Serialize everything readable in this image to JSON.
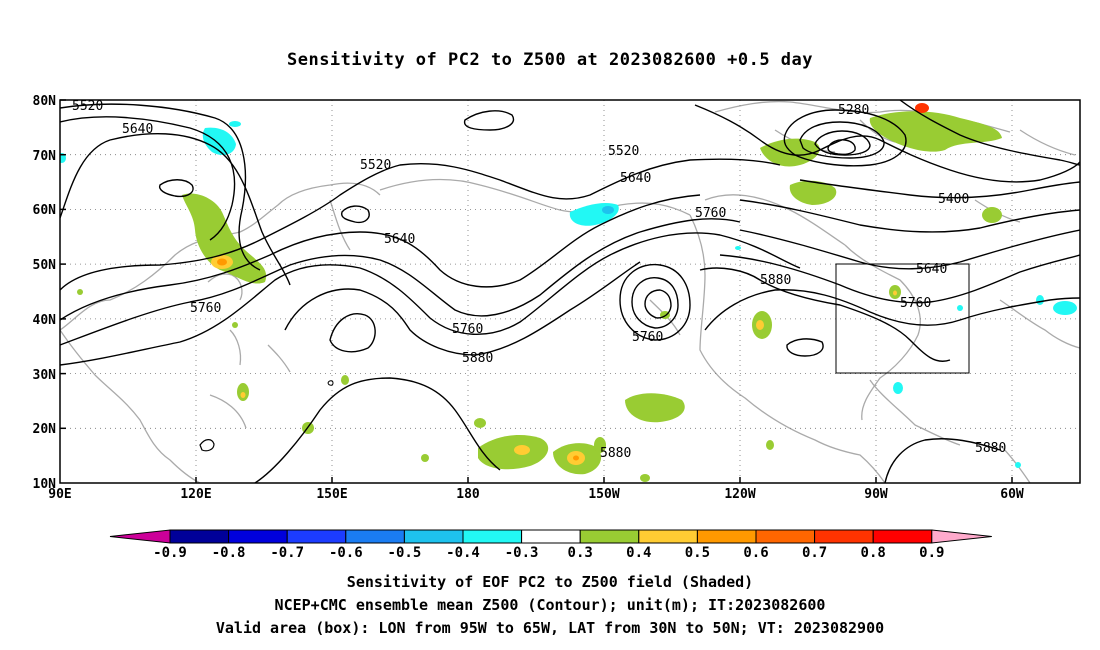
{
  "title": "Sensitivity of PC2 to Z500 at 2023082600 +0.5 day",
  "map": {
    "lat_labels": [
      "80N",
      "70N",
      "60N",
      "50N",
      "40N",
      "30N",
      "20N",
      "10N"
    ],
    "lon_labels": [
      "90E",
      "120E",
      "150E",
      "180",
      "150W",
      "120W",
      "90W",
      "60W"
    ],
    "contour_labels": [
      "5520",
      "5640",
      "5520",
      "5640",
      "5760",
      "5520",
      "5640",
      "5760",
      "5760",
      "5880",
      "5760",
      "5880",
      "5280",
      "5400",
      "5640",
      "5760",
      "5880",
      "5880"
    ],
    "valid_box": {
      "lon_from": "95W",
      "lon_to": "65W",
      "lat_from": "30N",
      "lat_to": "50N"
    }
  },
  "colorbar": {
    "labels": [
      "-0.9",
      "-0.8",
      "-0.7",
      "-0.6",
      "-0.5",
      "-0.4",
      "-0.3",
      "0.3",
      "0.4",
      "0.5",
      "0.6",
      "0.7",
      "0.8",
      "0.9"
    ],
    "colors": [
      "#000099",
      "#0000dd",
      "#1c3cff",
      "#1a7cf2",
      "#1ec2ee",
      "#22f8f4",
      "#ffffff",
      "#99cc33",
      "#ffcc33",
      "#ff9900",
      "#ff6600",
      "#ff3300",
      "#ff0000"
    ],
    "low_tip_color": "#cc0099",
    "high_tip_color": "#ffaacc"
  },
  "footer": {
    "line1": "Sensitivity of EOF PC2 to Z500 field (Shaded)",
    "line2": "NCEP+CMC ensemble mean Z500 (Contour); unit(m); IT:2023082600",
    "line3": "Valid area (box): LON from 95W to 65W, LAT from 30N to 50N; VT: 2023082900"
  }
}
